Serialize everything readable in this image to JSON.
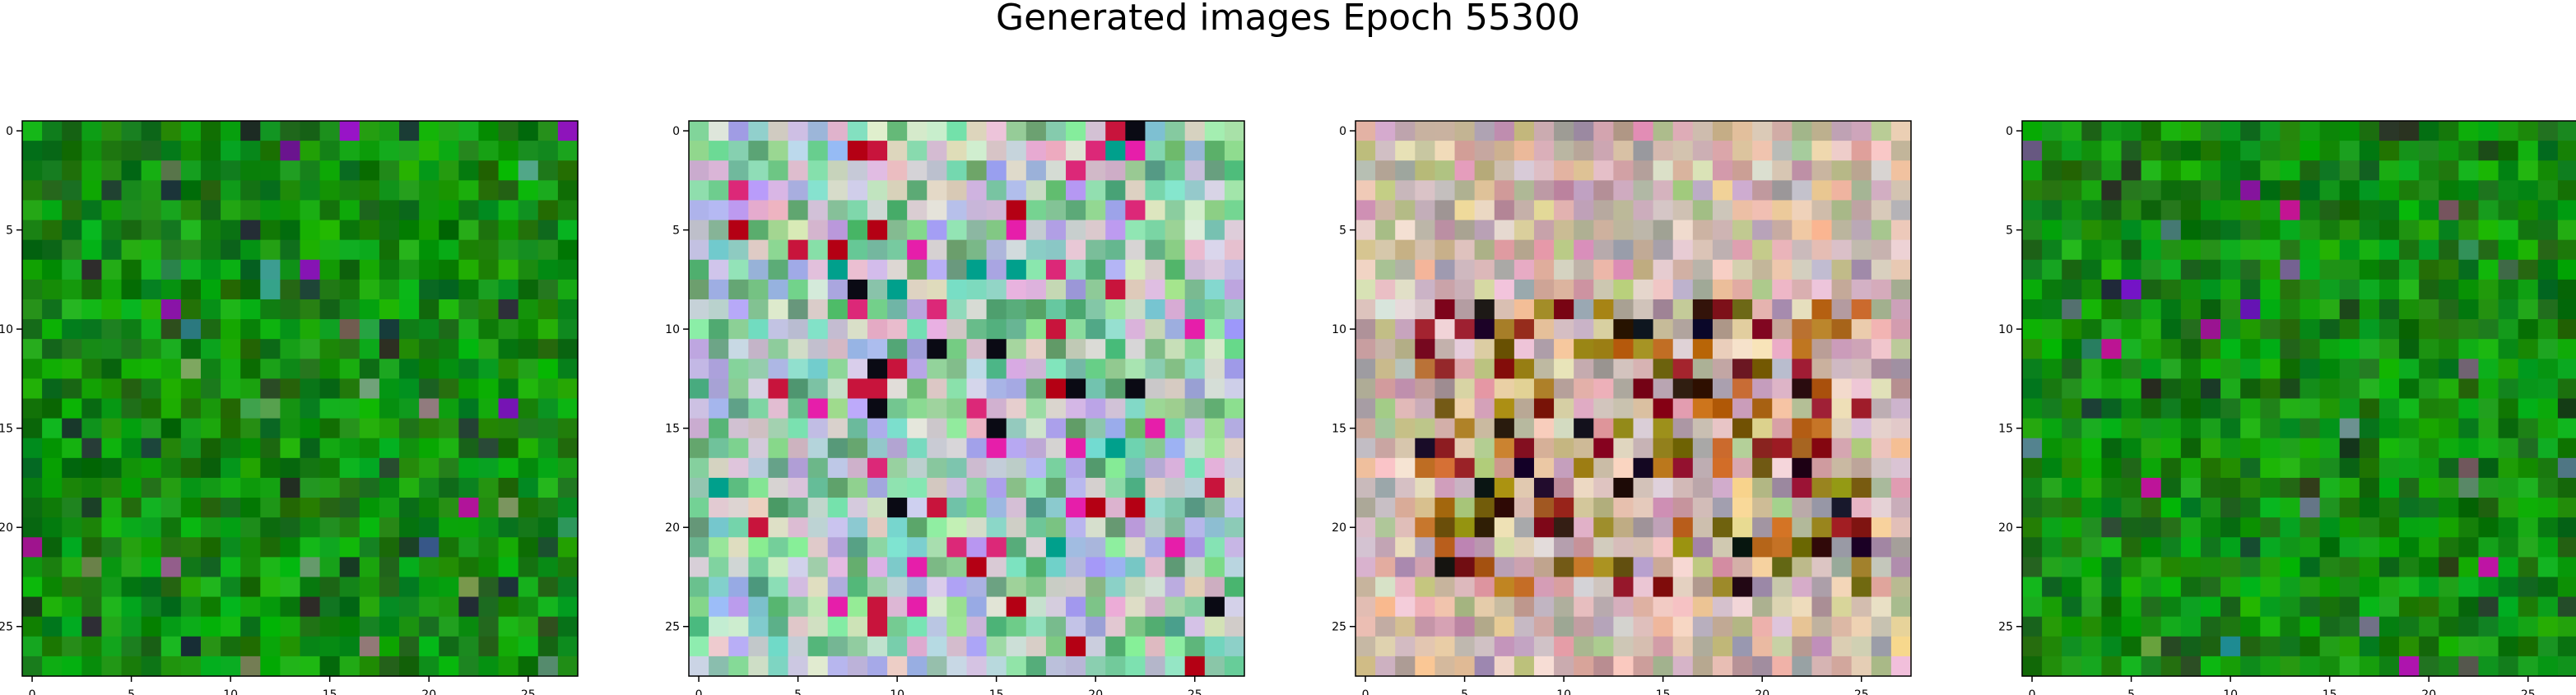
{
  "figure": {
    "title": "Generated images Epoch 55300"
  },
  "chart_data": [
    {
      "type": "heatmap",
      "image_index": 1,
      "palette": "green",
      "title": "",
      "xlabel": "",
      "ylabel": "",
      "size": [
        28,
        28
      ],
      "xlim": [
        -0.5,
        27.5
      ],
      "ylim": [
        27.5,
        -0.5
      ],
      "x_ticks": [
        0,
        5,
        10,
        15,
        20,
        25
      ],
      "y_ticks": [
        0,
        5,
        10,
        15,
        20,
        25
      ],
      "tick_labels": [
        "0",
        "5",
        "10",
        "15",
        "20",
        "25"
      ],
      "grid": false
    },
    {
      "type": "heatmap",
      "image_index": 2,
      "palette": "pastel",
      "title": "",
      "xlabel": "",
      "ylabel": "",
      "size": [
        28,
        28
      ],
      "xlim": [
        -0.5,
        27.5
      ],
      "ylim": [
        27.5,
        -0.5
      ],
      "x_ticks": [
        0,
        5,
        10,
        15,
        20,
        25
      ],
      "y_ticks": [
        0,
        5,
        10,
        15,
        20,
        25
      ],
      "tick_labels": [
        "0",
        "5",
        "10",
        "15",
        "20",
        "25"
      ],
      "grid": false
    },
    {
      "type": "heatmap",
      "image_index": 3,
      "palette": "warm",
      "title": "",
      "xlabel": "",
      "ylabel": "",
      "size": [
        28,
        28
      ],
      "xlim": [
        -0.5,
        27.5
      ],
      "ylim": [
        27.5,
        -0.5
      ],
      "x_ticks": [
        0,
        5,
        10,
        15,
        20,
        25
      ],
      "y_ticks": [
        0,
        5,
        10,
        15,
        20,
        25
      ],
      "tick_labels": [
        "0",
        "5",
        "10",
        "15",
        "20",
        "25"
      ],
      "grid": false
    },
    {
      "type": "heatmap",
      "image_index": 4,
      "palette": "green",
      "title": "",
      "xlabel": "",
      "ylabel": "",
      "size": [
        28,
        28
      ],
      "xlim": [
        -0.5,
        27.5
      ],
      "ylim": [
        27.5,
        -0.5
      ],
      "x_ticks": [
        0,
        5,
        10,
        15,
        20,
        25
      ],
      "y_ticks": [
        0,
        5,
        10,
        15,
        20,
        25
      ],
      "tick_labels": [
        "0",
        "5",
        "10",
        "15",
        "20",
        "25"
      ],
      "grid": false
    }
  ]
}
